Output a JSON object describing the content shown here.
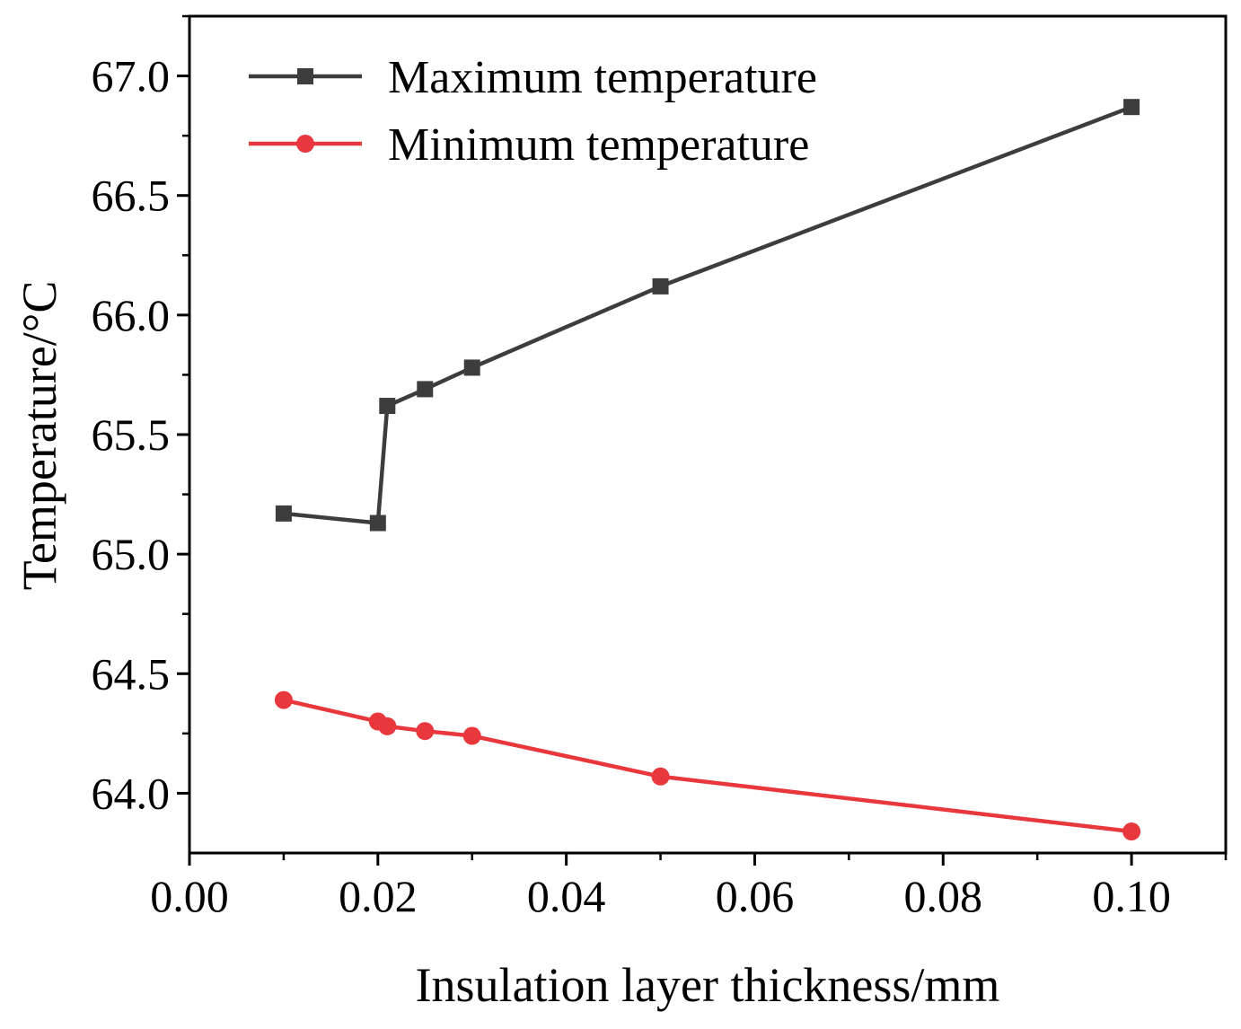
{
  "chart_data": {
    "type": "line",
    "title": "",
    "xlabel": "Insulation layer thickness/mm",
    "ylabel": "Temperature/°C",
    "xlim": [
      0.0,
      0.11
    ],
    "ylim": [
      63.75,
      67.25
    ],
    "xticks": [
      0.0,
      0.02,
      0.04,
      0.06,
      0.08,
      0.1
    ],
    "xtick_labels": [
      "0.00",
      "0.02",
      "0.04",
      "0.06",
      "0.08",
      "0.10"
    ],
    "yticks": [
      64.0,
      64.5,
      65.0,
      65.5,
      66.0,
      66.5,
      67.0
    ],
    "ytick_labels": [
      "64.0",
      "64.5",
      "65.0",
      "65.5",
      "66.0",
      "66.5",
      "67.0"
    ],
    "x": [
      0.01,
      0.02,
      0.021,
      0.025,
      0.03,
      0.05,
      0.1
    ],
    "series": [
      {
        "name": "Maximum temperature",
        "marker": "square",
        "color": "#3d3d3d",
        "values": [
          65.17,
          65.13,
          65.62,
          65.69,
          65.78,
          66.12,
          66.87
        ]
      },
      {
        "name": "Minimum temperature",
        "marker": "circle",
        "color": "#e8383d",
        "values": [
          64.39,
          64.3,
          64.28,
          64.26,
          64.24,
          64.07,
          63.84
        ]
      }
    ],
    "grid": false,
    "legend_position": "top-left"
  }
}
